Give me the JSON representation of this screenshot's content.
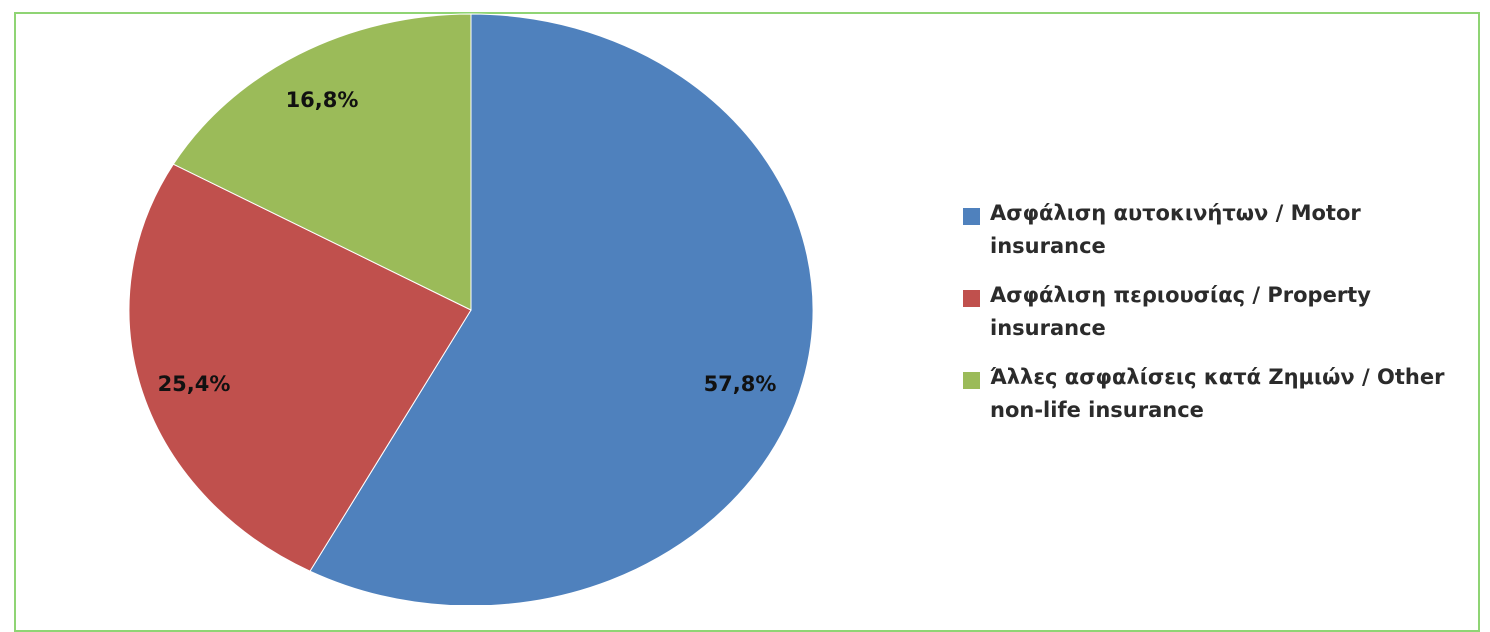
{
  "chart_data": {
    "type": "pie",
    "title": "",
    "slices": [
      {
        "label": "Ασφάλιση αυτοκινήτων / Motor insurance",
        "value": 57.8,
        "display": "57,8%",
        "color": "#4f81bd"
      },
      {
        "label": "Ασφάλιση περιουσίας / Property insurance",
        "value": 25.4,
        "display": "25,4%",
        "color": "#c0504d"
      },
      {
        "label": "Άλλες ασφαλίσεις κατά Ζημιών / Other non-life insurance",
        "value": 16.8,
        "display": "16,8%",
        "color": "#9bbb59"
      }
    ],
    "start_angle": "12 o'clock",
    "direction": "clockwise",
    "legend_position": "right"
  },
  "colors": {
    "frame_border": "#8fd474",
    "title_strip": "#5fbf3a"
  }
}
